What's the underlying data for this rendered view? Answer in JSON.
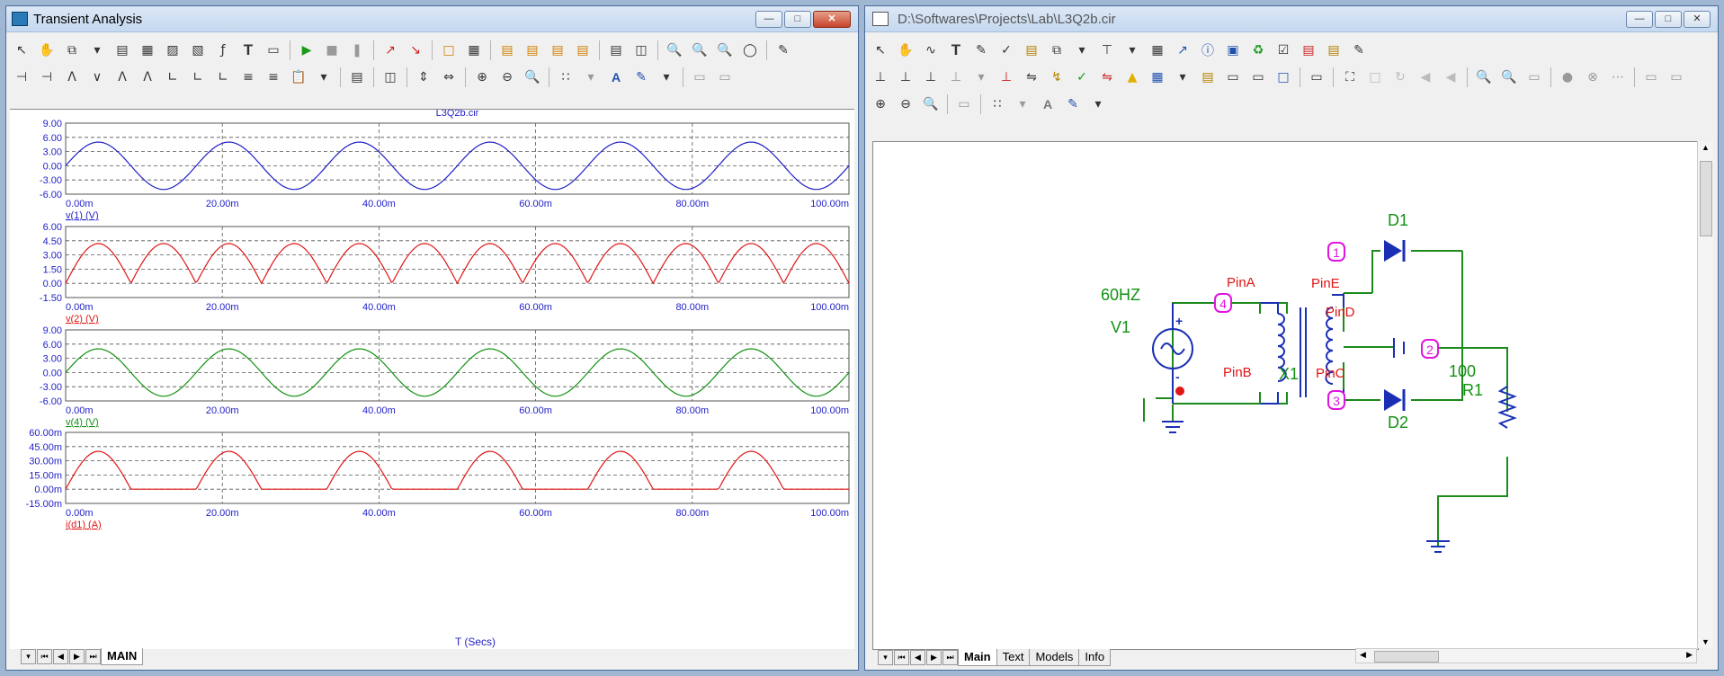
{
  "left_window": {
    "title": "Transient Analysis",
    "plot_title": "L3Q2b.cir",
    "x_axis_label": "T (Secs)",
    "tabs": [
      "MAIN"
    ]
  },
  "right_window": {
    "title": "D:\\Softwares\\Projects\\Lab\\L3Q2b.cir",
    "tabs": [
      "Main",
      "Text",
      "Models",
      "Info"
    ]
  },
  "schematic": {
    "source_freq": "60HZ",
    "source_name": "V1",
    "transformer_name": "X1",
    "pins": [
      "PinA",
      "PinB",
      "PinC",
      "PinD",
      "PinE"
    ],
    "diode1": "D1",
    "diode2": "D2",
    "resistor_value": "100",
    "resistor_name": "R1",
    "nodes": [
      "1",
      "2",
      "3",
      "4"
    ],
    "plus_sign": "+",
    "minus_sign": "-"
  },
  "colors": {
    "blue": "#1f1fc8",
    "red": "#e01515",
    "green": "#119111",
    "magenta": "#e015e0",
    "wire": "#1c8a1c"
  },
  "chart_data": [
    {
      "type": "line",
      "ylabel": "v(1) (V)",
      "series": [
        {
          "name": "v(1) (V)",
          "color": "#1f1fc8",
          "kind": "sine",
          "amplitude": 5,
          "freq_hz": 60,
          "offset": 0
        }
      ],
      "xlim": [
        0,
        100
      ],
      "ylim": [
        -6,
        9
      ],
      "yticks": [
        "9.00",
        "6.00",
        "3.00",
        "0.00",
        "-3.00",
        "-6.00"
      ],
      "ytick_values": [
        9,
        6,
        3,
        0,
        -3,
        -6
      ],
      "xticks": [
        "0.00m",
        "20.00m",
        "40.00m",
        "60.00m",
        "80.00m",
        "100.00m"
      ],
      "grid": true
    },
    {
      "type": "line",
      "ylabel": "v(2) (V)",
      "series": [
        {
          "name": "v(2) (V)",
          "color": "#e01515",
          "kind": "fullwave",
          "amplitude": 4.2,
          "freq_hz": 60,
          "offset": 0
        }
      ],
      "xlim": [
        0,
        100
      ],
      "ylim": [
        -1.5,
        6
      ],
      "yticks": [
        "6.00",
        "4.50",
        "3.00",
        "1.50",
        "0.00",
        "-1.50"
      ],
      "ytick_values": [
        6,
        4.5,
        3,
        1.5,
        0,
        -1.5
      ],
      "xticks": [
        "0.00m",
        "20.00m",
        "40.00m",
        "60.00m",
        "80.00m",
        "100.00m"
      ],
      "grid": true
    },
    {
      "type": "line",
      "ylabel": "v(4) (V)",
      "series": [
        {
          "name": "v(4) (V)",
          "color": "#119111",
          "kind": "sine",
          "amplitude": 5,
          "freq_hz": 60,
          "offset": 0
        }
      ],
      "xlim": [
        0,
        100
      ],
      "ylim": [
        -6,
        9
      ],
      "yticks": [
        "9.00",
        "6.00",
        "3.00",
        "0.00",
        "-3.00",
        "-6.00"
      ],
      "ytick_values": [
        9,
        6,
        3,
        0,
        -3,
        -6
      ],
      "xticks": [
        "0.00m",
        "20.00m",
        "40.00m",
        "60.00m",
        "80.00m",
        "100.00m"
      ],
      "grid": true
    },
    {
      "type": "line",
      "ylabel": "i(d1) (A)",
      "series": [
        {
          "name": "i(d1) (A)",
          "color": "#e01515",
          "kind": "halfwave",
          "amplitude": 40,
          "freq_hz": 60,
          "offset": 0
        }
      ],
      "xlim": [
        0,
        100
      ],
      "ylim": [
        -15,
        60
      ],
      "yticks": [
        "60.00m",
        "45.00m",
        "30.00m",
        "15.00m",
        "0.00m",
        "-15.00m"
      ],
      "ytick_values": [
        60,
        45,
        30,
        15,
        0,
        -15
      ],
      "xticks": [
        "0.00m",
        "20.00m",
        "40.00m",
        "60.00m",
        "80.00m",
        "100.00m"
      ],
      "grid": true
    }
  ]
}
